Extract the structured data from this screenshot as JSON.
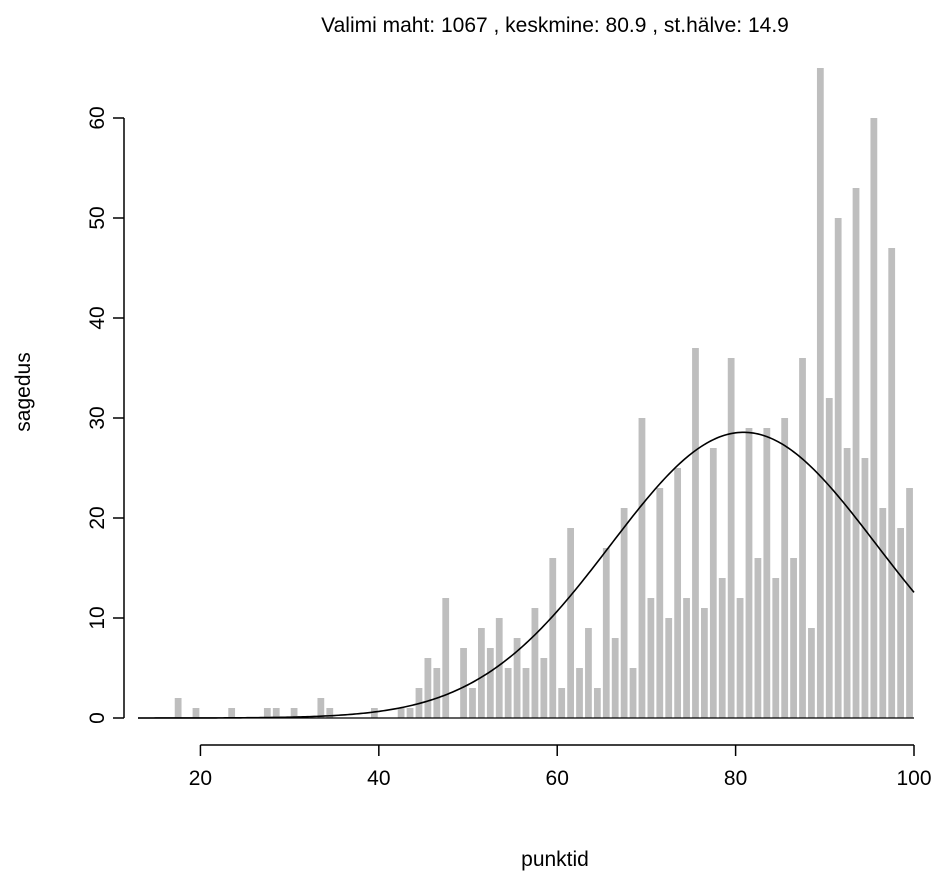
{
  "chart_data": {
    "type": "bar",
    "title": "Valimi maht: 1067 , keskmine: 80.9 , st.hälve: 14.9",
    "xlabel": "punktid",
    "ylabel": "sagedus",
    "xlim": [
      13,
      100
    ],
    "ylim": [
      0,
      65
    ],
    "x_ticks": [
      20,
      40,
      60,
      80,
      100
    ],
    "y_ticks": [
      0,
      10,
      20,
      30,
      40,
      50,
      60
    ],
    "bar_color": "#bebebe",
    "curve_color": "#000000",
    "grid": false,
    "bars": [
      {
        "x": 17.5,
        "y": 2
      },
      {
        "x": 19.5,
        "y": 1
      },
      {
        "x": 23.5,
        "y": 1
      },
      {
        "x": 27.5,
        "y": 1
      },
      {
        "x": 28.5,
        "y": 1
      },
      {
        "x": 30.5,
        "y": 1
      },
      {
        "x": 33.5,
        "y": 2
      },
      {
        "x": 34.5,
        "y": 1
      },
      {
        "x": 39.5,
        "y": 1
      },
      {
        "x": 42.5,
        "y": 1
      },
      {
        "x": 43.5,
        "y": 1
      },
      {
        "x": 44.5,
        "y": 3
      },
      {
        "x": 45.5,
        "y": 6
      },
      {
        "x": 46.5,
        "y": 5
      },
      {
        "x": 47.5,
        "y": 12
      },
      {
        "x": 49.5,
        "y": 7
      },
      {
        "x": 50.5,
        "y": 3
      },
      {
        "x": 51.5,
        "y": 9
      },
      {
        "x": 52.5,
        "y": 7
      },
      {
        "x": 53.5,
        "y": 10
      },
      {
        "x": 54.5,
        "y": 5
      },
      {
        "x": 55.5,
        "y": 8
      },
      {
        "x": 56.5,
        "y": 5
      },
      {
        "x": 57.5,
        "y": 11
      },
      {
        "x": 58.5,
        "y": 6
      },
      {
        "x": 59.5,
        "y": 16
      },
      {
        "x": 60.5,
        "y": 3
      },
      {
        "x": 61.5,
        "y": 19
      },
      {
        "x": 62.5,
        "y": 5
      },
      {
        "x": 63.5,
        "y": 9
      },
      {
        "x": 64.5,
        "y": 3
      },
      {
        "x": 65.5,
        "y": 17
      },
      {
        "x": 66.5,
        "y": 8
      },
      {
        "x": 67.5,
        "y": 21
      },
      {
        "x": 68.5,
        "y": 5
      },
      {
        "x": 69.5,
        "y": 30
      },
      {
        "x": 70.5,
        "y": 12
      },
      {
        "x": 71.5,
        "y": 23
      },
      {
        "x": 72.5,
        "y": 10
      },
      {
        "x": 73.5,
        "y": 25
      },
      {
        "x": 74.5,
        "y": 12
      },
      {
        "x": 75.5,
        "y": 37
      },
      {
        "x": 76.5,
        "y": 11
      },
      {
        "x": 77.5,
        "y": 27
      },
      {
        "x": 78.5,
        "y": 14
      },
      {
        "x": 79.5,
        "y": 36
      },
      {
        "x": 80.5,
        "y": 12
      },
      {
        "x": 81.5,
        "y": 29
      },
      {
        "x": 82.5,
        "y": 16
      },
      {
        "x": 83.5,
        "y": 29
      },
      {
        "x": 84.5,
        "y": 14
      },
      {
        "x": 85.5,
        "y": 30
      },
      {
        "x": 86.5,
        "y": 16
      },
      {
        "x": 87.5,
        "y": 36
      },
      {
        "x": 88.5,
        "y": 9
      },
      {
        "x": 89.5,
        "y": 65
      },
      {
        "x": 90.5,
        "y": 32
      },
      {
        "x": 91.5,
        "y": 50
      },
      {
        "x": 92.5,
        "y": 27
      },
      {
        "x": 93.5,
        "y": 53
      },
      {
        "x": 94.5,
        "y": 26
      },
      {
        "x": 95.5,
        "y": 60
      },
      {
        "x": 96.5,
        "y": 21
      },
      {
        "x": 97.5,
        "y": 47
      },
      {
        "x": 98.5,
        "y": 19
      },
      {
        "x": 99.5,
        "y": 23
      }
    ],
    "normal_curve": {
      "mean": 80.9,
      "sd": 14.9,
      "n": 1067,
      "binwidth": 1
    }
  }
}
